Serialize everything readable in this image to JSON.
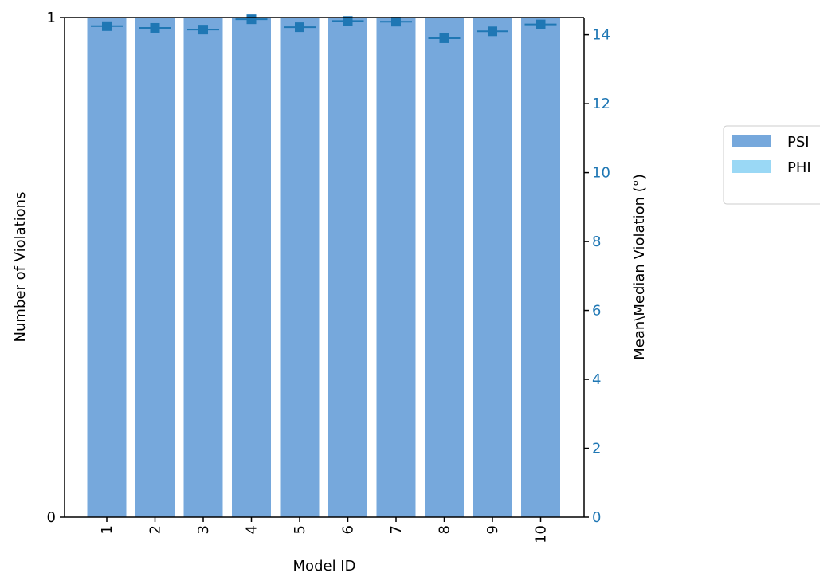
{
  "chart_data": {
    "type": "bar",
    "title": "",
    "categories": [
      "1",
      "2",
      "3",
      "4",
      "5",
      "6",
      "7",
      "8",
      "9",
      "10"
    ],
    "series": [
      {
        "name": "PSI",
        "color": "#76a8dc",
        "values": [
          1,
          1,
          1,
          1,
          1,
          1,
          1,
          1,
          1,
          1
        ]
      },
      {
        "name": "PHI",
        "color": "#9ad8f5",
        "values": [
          0,
          0,
          0,
          0,
          0,
          0,
          0,
          0,
          0,
          0
        ]
      }
    ],
    "secondary_series": {
      "axis": "right",
      "color": "#1f77b4",
      "markers": "square with horizontal bar",
      "values": [
        14.25,
        14.2,
        14.15,
        14.45,
        14.22,
        14.4,
        14.38,
        13.9,
        14.1,
        14.3
      ]
    },
    "xlabel": "Model ID",
    "ylabel": "Number of Violations",
    "ylabel_right": "Mean\\Median Violation (°)",
    "ylim": [
      0,
      1
    ],
    "yticks": [
      "0",
      "1"
    ],
    "ylim_right": [
      0,
      14.5
    ],
    "yticks_right": [
      "0",
      "2",
      "4",
      "6",
      "8",
      "10",
      "12",
      "14"
    ],
    "legend_position": "outside-right",
    "grid": false
  }
}
